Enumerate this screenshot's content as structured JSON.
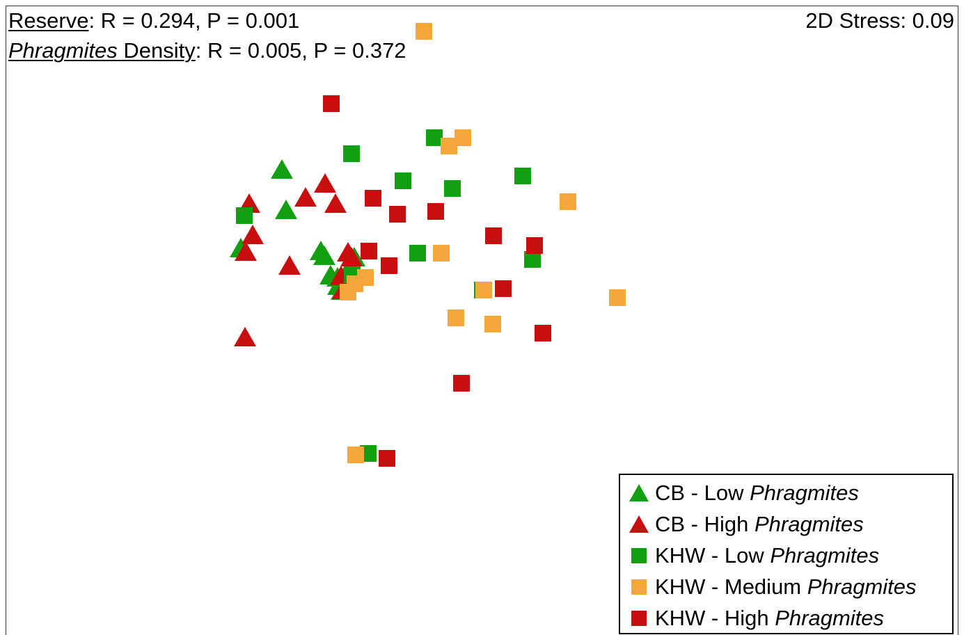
{
  "header": {
    "reserve_label": "Reserve",
    "reserve_stats": ": R = 0.294, P = 0.001",
    "density_label_italic": "Phragmites",
    "density_label_rest": " Density",
    "density_stats": ": R = 0.005, P = 0.372",
    "stress": "2D Stress: 0.09"
  },
  "colors": {
    "green": "#12a012",
    "red": "#c80f0f",
    "orange": "#f5a83a"
  },
  "legend": {
    "items": [
      {
        "prefix": "CB - Low ",
        "italic": "Phragmites",
        "shape": "triangle",
        "color": "#12a012"
      },
      {
        "prefix": "CB - High ",
        "italic": "Phragmites",
        "shape": "triangle",
        "color": "#c80f0f"
      },
      {
        "prefix": "KHW - Low ",
        "italic": "Phragmites",
        "shape": "square",
        "color": "#12a012"
      },
      {
        "prefix": "KHW - Medium ",
        "italic": "Phragmites",
        "shape": "square",
        "color": "#f5a83a"
      },
      {
        "prefix": "KHW - High ",
        "italic": "Phragmites",
        "shape": "square",
        "color": "#c80f0f"
      }
    ]
  },
  "chart_data": {
    "type": "scatter",
    "title": "",
    "xlabel": "",
    "ylabel": "",
    "xlim": [
      0,
      1000
    ],
    "ylim": [
      -660,
      0
    ],
    "grid": false,
    "legend_position": "bottom-right",
    "series": [
      {
        "name": "CB - Low Phragmites",
        "shape": "triangle",
        "color": "#12a012",
        "points": [
          [
            305,
            -217
          ],
          [
            311,
            -275
          ],
          [
            246,
            -330
          ],
          [
            361,
            -334
          ],
          [
            366,
            -341
          ],
          [
            375,
            -369
          ],
          [
            386,
            -384
          ],
          [
            391,
            -391
          ],
          [
            409,
            -343
          ],
          [
            385,
            -372
          ],
          [
            395,
            -370
          ]
        ]
      },
      {
        "name": "CB - High Phragmites",
        "shape": "triangle",
        "color": "#c80f0f",
        "points": [
          [
            367,
            -237
          ],
          [
            339,
            -257
          ],
          [
            382,
            -266
          ],
          [
            258,
            -266
          ],
          [
            263,
            -311
          ],
          [
            253,
            -335
          ],
          [
            316,
            -355
          ],
          [
            400,
            -336
          ],
          [
            405,
            -343
          ],
          [
            390,
            -370
          ],
          [
            393,
            -390
          ],
          [
            252,
            -458
          ]
        ]
      },
      {
        "name": "KHW - Low Phragmites",
        "shape": "square",
        "color": "#12a012",
        "points": [
          [
            405,
            -193
          ],
          [
            524,
            -170
          ],
          [
            479,
            -232
          ],
          [
            550,
            -243
          ],
          [
            651,
            -225
          ],
          [
            251,
            -282
          ],
          [
            500,
            -336
          ],
          [
            665,
            -345
          ],
          [
            406,
            -367
          ],
          [
            593,
            -389
          ],
          [
            429,
            -624
          ]
        ]
      },
      {
        "name": "KHW - Medium Phragmites",
        "shape": "square",
        "color": "#f5a83a",
        "points": [
          [
            509,
            -17
          ],
          [
            565,
            -170
          ],
          [
            545,
            -182
          ],
          [
            716,
            -262
          ],
          [
            534,
            -336
          ],
          [
            425,
            -371
          ],
          [
            410,
            -380
          ],
          [
            400,
            -392
          ],
          [
            595,
            -389
          ],
          [
            787,
            -400
          ],
          [
            555,
            -429
          ],
          [
            608,
            -438
          ],
          [
            411,
            -626
          ]
        ]
      },
      {
        "name": "KHW - High Phragmites",
        "shape": "square",
        "color": "#c80f0f",
        "points": [
          [
            376,
            -121
          ],
          [
            436,
            -257
          ],
          [
            471,
            -280
          ],
          [
            526,
            -276
          ],
          [
            609,
            -311
          ],
          [
            668,
            -325
          ],
          [
            430,
            -333
          ],
          [
            459,
            -354
          ],
          [
            623,
            -387
          ],
          [
            680,
            -451
          ],
          [
            563,
            -523
          ],
          [
            456,
            -631
          ]
        ]
      }
    ]
  }
}
